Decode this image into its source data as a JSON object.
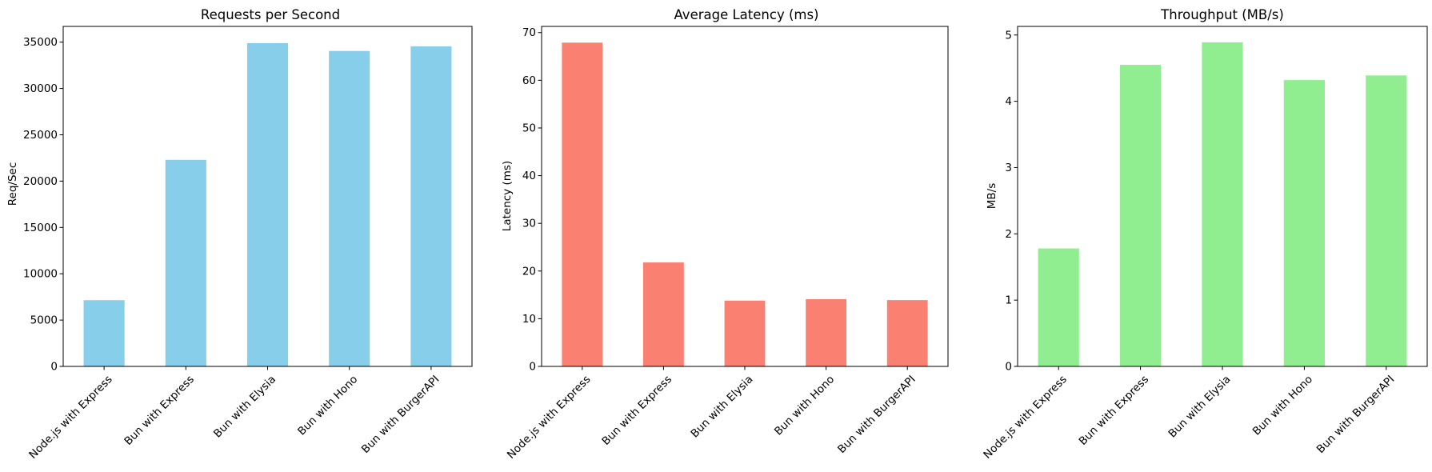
{
  "chart_data": [
    {
      "type": "bar",
      "title": "Requests per Second",
      "xlabel": "",
      "ylabel": "Req/Sec",
      "categories": [
        "Node.js with Express",
        "Bun with Express",
        "Bun with Elysia",
        "Bun with Hono",
        "Bun with BurgerAPI"
      ],
      "values": [
        7150,
        22300,
        34900,
        34050,
        34550
      ],
      "color": "#87CEEB",
      "ylim": [
        0,
        36700
      ],
      "yticks": [
        0,
        5000,
        10000,
        15000,
        20000,
        25000,
        30000,
        35000
      ],
      "ytick_labels": [
        "0",
        "5000",
        "10000",
        "15000",
        "20000",
        "25000",
        "30000",
        "35000"
      ],
      "grid": false
    },
    {
      "type": "bar",
      "title": "Average Latency (ms)",
      "xlabel": "",
      "ylabel": "Latency (ms)",
      "categories": [
        "Node.js with Express",
        "Bun with Express",
        "Bun with Elysia",
        "Bun with Hono",
        "Bun with BurgerAPI"
      ],
      "values": [
        67.9,
        21.8,
        13.8,
        14.1,
        13.9
      ],
      "color": "#FA8072",
      "ylim": [
        0,
        71.3
      ],
      "yticks": [
        0,
        10,
        20,
        30,
        40,
        50,
        60,
        70
      ],
      "ytick_labels": [
        "0",
        "10",
        "20",
        "30",
        "40",
        "50",
        "60",
        "70"
      ],
      "grid": false
    },
    {
      "type": "bar",
      "title": "Throughput (MB/s)",
      "xlabel": "",
      "ylabel": "MB/s",
      "categories": [
        "Node.js with Express",
        "Bun with Express",
        "Bun with Elysia",
        "Bun with Hono",
        "Bun with BurgerAPI"
      ],
      "values": [
        1.78,
        4.55,
        4.89,
        4.32,
        4.39
      ],
      "color": "#90EE90",
      "ylim": [
        0,
        5.13
      ],
      "yticks": [
        0,
        1,
        2,
        3,
        4,
        5
      ],
      "ytick_labels": [
        "0",
        "1",
        "2",
        "3",
        "4",
        "5"
      ],
      "grid": false
    }
  ]
}
